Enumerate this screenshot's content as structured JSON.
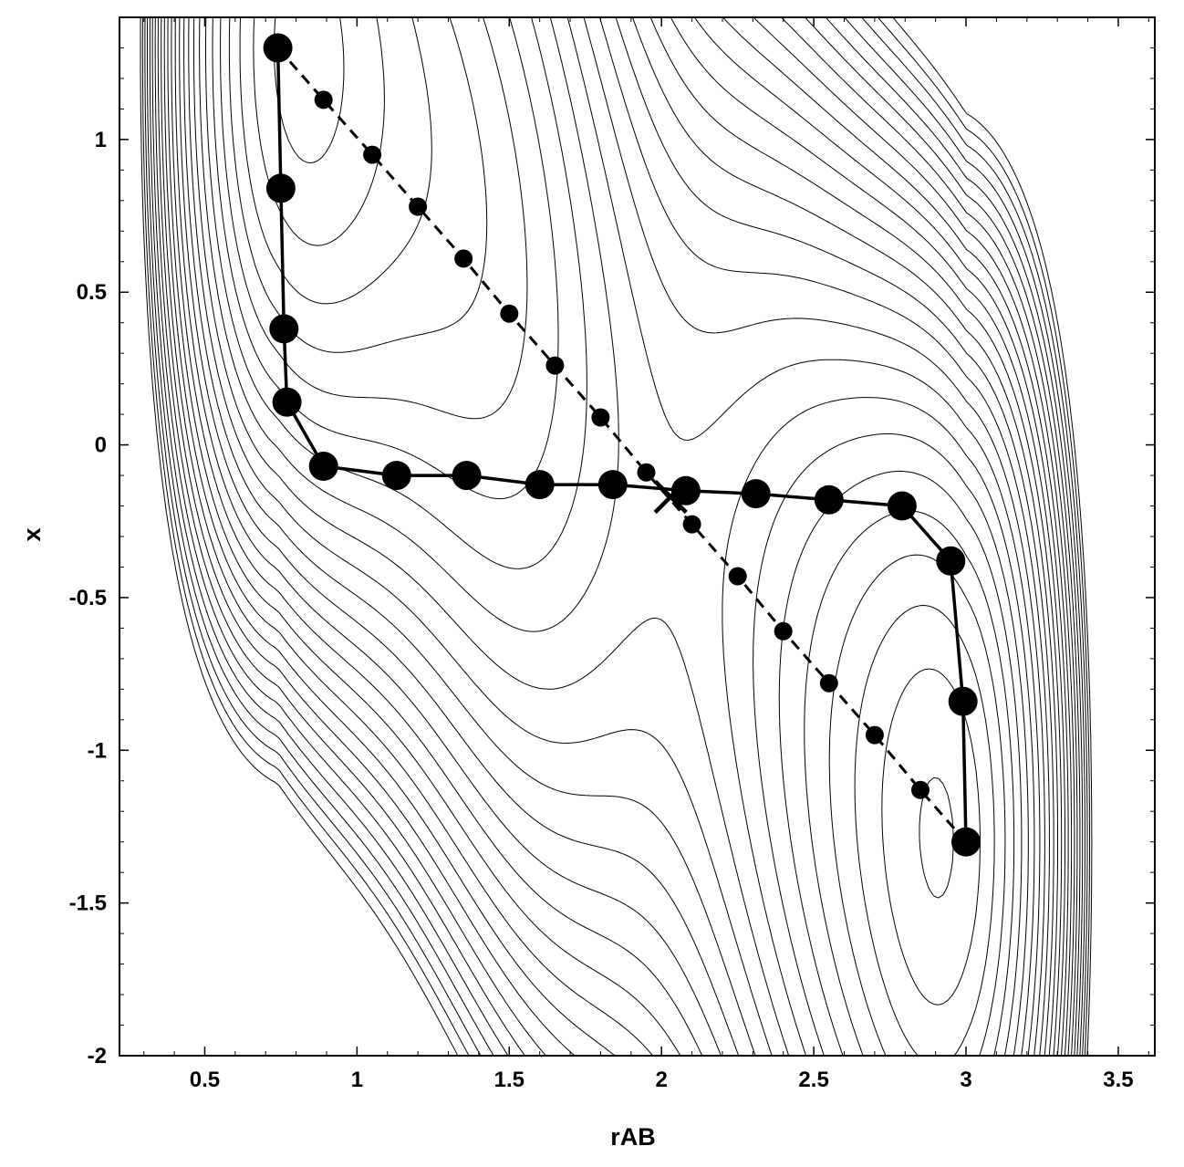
{
  "chart_data": {
    "type": "line",
    "title": "",
    "xlabel": "rAB",
    "ylabel": "x",
    "xlim": [
      0.22,
      3.62
    ],
    "ylim": [
      -2.0,
      1.4
    ],
    "xticks": [
      "0.5",
      "1",
      "1.5",
      "2",
      "2.5",
      "3",
      "3.5"
    ],
    "yticks": [
      "-2",
      "-1.5",
      "-1",
      "-0.5",
      "0",
      "0.5",
      "1"
    ],
    "grid": false,
    "legend": "none",
    "series": [
      {
        "style": "solid",
        "marker": "large-circle",
        "x": [
          0.74,
          0.75,
          0.76,
          0.77,
          0.89,
          1.13,
          1.36,
          1.6,
          1.84,
          2.08,
          2.31,
          2.55,
          2.79,
          2.95,
          2.99,
          3.0
        ],
        "y": [
          1.3,
          0.84,
          0.38,
          0.14,
          -0.07,
          -0.1,
          -0.1,
          -0.13,
          -0.13,
          -0.15,
          -0.16,
          -0.18,
          -0.2,
          -0.38,
          -0.84,
          -1.3
        ]
      },
      {
        "style": "dashed",
        "marker": "small-circle",
        "x": [
          0.74,
          0.89,
          1.05,
          1.2,
          1.35,
          1.5,
          1.65,
          1.8,
          1.95,
          2.1,
          2.25,
          2.4,
          2.55,
          2.7,
          2.85,
          3.0
        ],
        "y": [
          1.3,
          1.13,
          0.95,
          0.78,
          0.61,
          0.43,
          0.26,
          0.09,
          -0.09,
          -0.26,
          -0.43,
          -0.61,
          -0.78,
          -0.95,
          -1.13,
          -1.3
        ]
      }
    ],
    "annotations": [
      {
        "marker": "cross",
        "x": 2.03,
        "y": -0.17
      }
    ],
    "contours": {
      "type": "contour",
      "lines": "thin black",
      "minima": [
        [
          0.74,
          1.3
        ],
        [
          3.0,
          -1.3
        ]
      ],
      "saddle": [
        2.03,
        -0.17
      ]
    }
  }
}
